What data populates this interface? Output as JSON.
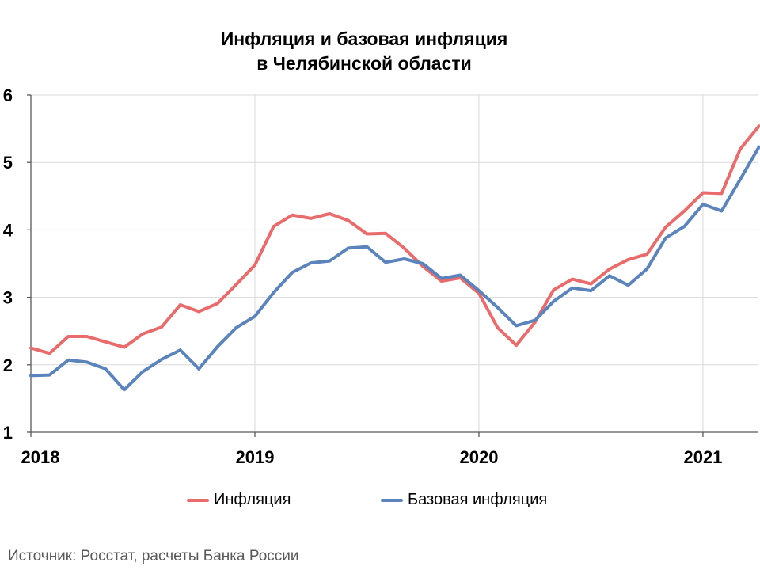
{
  "chart_data": {
    "type": "line",
    "title": [
      "Инфляция и базовая инфляция",
      "в  Челябинской области"
    ],
    "xlabel": "",
    "ylabel": "",
    "ylim": [
      1,
      6
    ],
    "yticks": [
      1,
      2,
      3,
      4,
      5,
      6
    ],
    "xtick_labels": [
      "2018",
      "2019",
      "2020",
      "2021"
    ],
    "grid": true,
    "legend_position": "bottom",
    "x": [
      "2018-01",
      "2018-02",
      "2018-03",
      "2018-04",
      "2018-05",
      "2018-06",
      "2018-07",
      "2018-08",
      "2018-09",
      "2018-10",
      "2018-11",
      "2018-12",
      "2019-01",
      "2019-02",
      "2019-03",
      "2019-04",
      "2019-05",
      "2019-06",
      "2019-07",
      "2019-08",
      "2019-09",
      "2019-10",
      "2019-11",
      "2019-12",
      "2020-01",
      "2020-02",
      "2020-03",
      "2020-04",
      "2020-05",
      "2020-06",
      "2020-07",
      "2020-08",
      "2020-09",
      "2020-10",
      "2020-11",
      "2020-12",
      "2021-01",
      "2021-02",
      "2021-03",
      "2021-04"
    ],
    "series": [
      {
        "name": "Инфляция",
        "color": "#ea6b6b",
        "values": [
          2.25,
          2.17,
          2.42,
          2.42,
          2.34,
          2.26,
          2.46,
          2.56,
          2.89,
          2.79,
          2.91,
          3.19,
          3.48,
          4.05,
          4.22,
          4.17,
          4.24,
          4.14,
          3.94,
          3.95,
          3.73,
          3.46,
          3.24,
          3.29,
          3.06,
          2.55,
          2.29,
          2.63,
          3.11,
          3.27,
          3.2,
          3.42,
          3.56,
          3.64,
          4.04,
          4.28,
          4.55,
          4.54,
          5.2,
          5.54
        ]
      },
      {
        "name": "Базовая инфляция",
        "color": "#5b84bd",
        "values": [
          1.84,
          1.85,
          2.07,
          2.04,
          1.94,
          1.63,
          1.9,
          2.08,
          2.22,
          1.94,
          2.27,
          2.55,
          2.72,
          3.07,
          3.37,
          3.51,
          3.54,
          3.73,
          3.75,
          3.52,
          3.57,
          3.5,
          3.28,
          3.33,
          3.1,
          2.85,
          2.58,
          2.66,
          2.94,
          3.14,
          3.1,
          3.32,
          3.18,
          3.42,
          3.88,
          4.05,
          4.38,
          4.28,
          4.75,
          5.23
        ]
      }
    ]
  },
  "legend": {
    "items": [
      {
        "label": "Инфляция",
        "color": "#ea6b6b"
      },
      {
        "label": "Базовая инфляция",
        "color": "#5b84bd"
      }
    ]
  },
  "source": "Источник: Росстат, расчеты Банка России"
}
